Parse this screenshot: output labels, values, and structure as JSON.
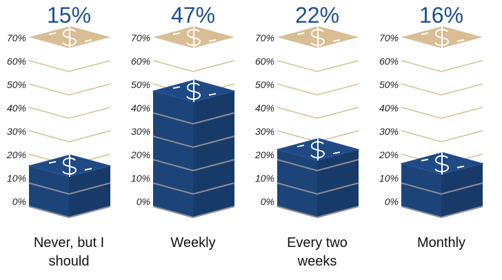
{
  "chart_data": {
    "type": "stack",
    "categories": [
      "Never, but I should",
      "Weekly",
      "Every two weeks",
      "Monthly"
    ],
    "values": [
      15,
      47,
      22,
      16
    ],
    "value_labels": [
      "15%",
      "47%",
      "22%",
      "16%"
    ],
    "color": "#1d4479",
    "ylim": [
      0,
      70
    ],
    "yticks": [
      {
        "value": 0,
        "label": "0%"
      },
      {
        "value": 10,
        "label": "10%"
      },
      {
        "value": 20,
        "label": "20%"
      },
      {
        "value": 30,
        "label": "30%"
      },
      {
        "value": 40,
        "label": "40%"
      },
      {
        "value": 50,
        "label": "50%"
      },
      {
        "value": 60,
        "label": "60%"
      },
      {
        "value": 70,
        "label": "70%"
      }
    ]
  }
}
